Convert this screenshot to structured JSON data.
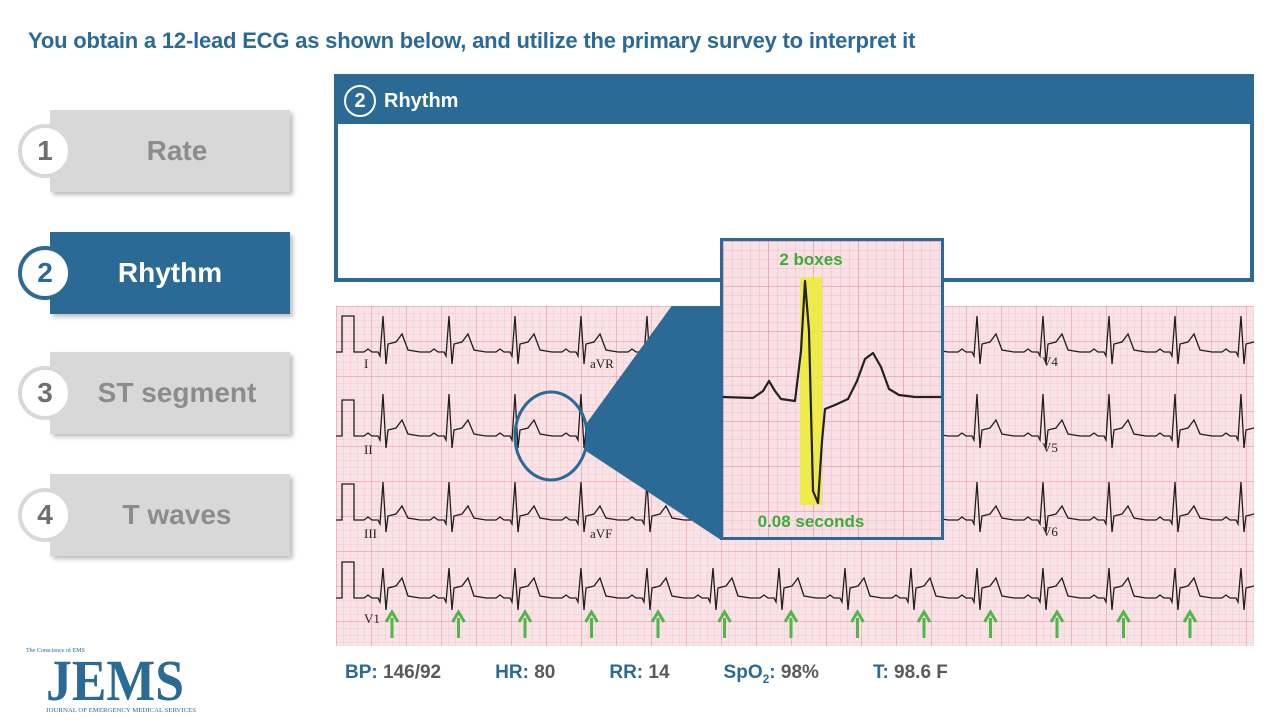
{
  "title": "You obtain a 12-lead ECG as shown below, and utilize the primary survey to interpret it",
  "steps": [
    {
      "num": "1",
      "label": "Rate",
      "active": false
    },
    {
      "num": "2",
      "label": "Rhythm",
      "active": true
    },
    {
      "num": "3",
      "label": "ST segment",
      "active": false
    },
    {
      "num": "4",
      "label": "T waves",
      "active": false
    }
  ],
  "panel": {
    "num": "2",
    "title": "Rhythm"
  },
  "ecg": {
    "leads": [
      "I",
      "aVR",
      "V4",
      "II",
      "V5",
      "III",
      "aVF",
      "V6",
      "V1"
    ]
  },
  "zoom": {
    "top_label": "2 boxes",
    "bottom_label": "0.08 seconds"
  },
  "vitals": {
    "bp_label": "BP:",
    "bp_value": "146/92",
    "hr_label": "HR:",
    "hr_value": "80",
    "rr_label": "RR:",
    "rr_value": "14",
    "spo2_label": "SpO",
    "spo2_sub": "2",
    "spo2_colon": ":",
    "spo2_value": "98%",
    "t_label": "T:",
    "t_value": "98.6 F"
  },
  "logo": {
    "main": "JEMS",
    "tagline": "The Conscience of EMS",
    "subtitle": "JOURNAL OF EMERGENCY MEDICAL SERVICES"
  },
  "colors": {
    "accent": "#2b6a94",
    "arrow": "#4fb64a",
    "highlight": "#ecec3a",
    "label_green": "#3eab3a"
  }
}
